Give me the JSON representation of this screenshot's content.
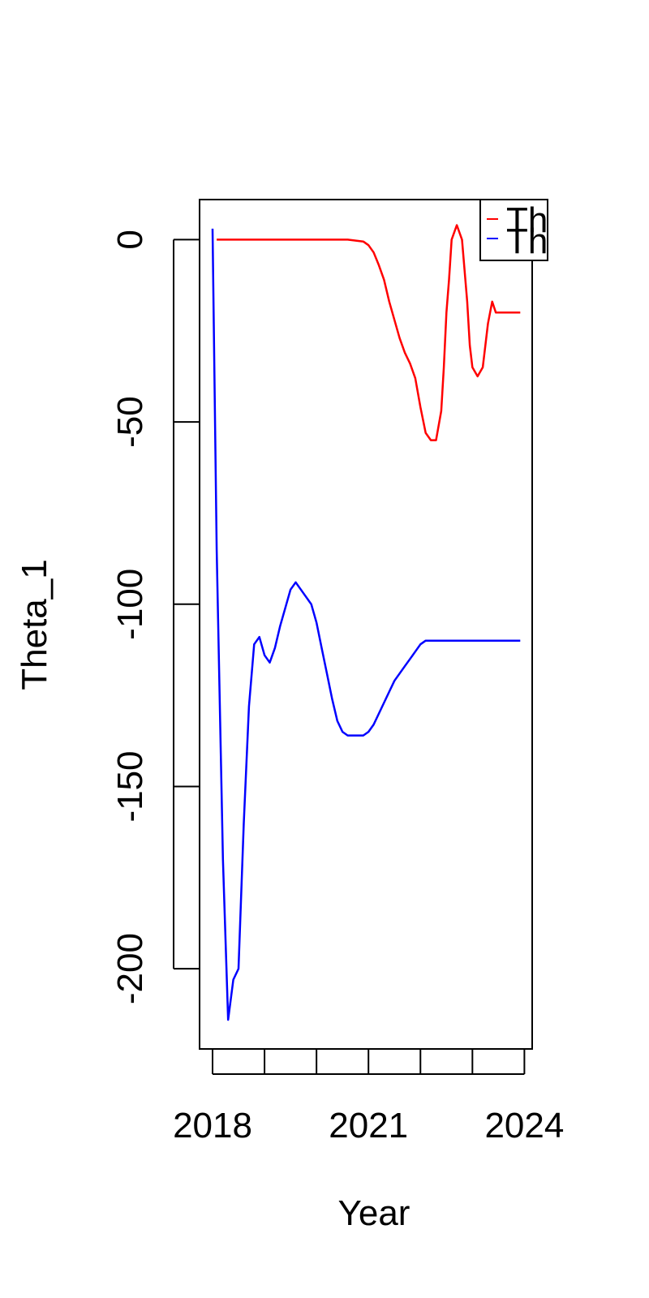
{
  "chart_data": {
    "type": "line",
    "title": "",
    "xlabel": "Year",
    "ylabel": "Theta_1",
    "xlim": [
      2017.75,
      2024.15
    ],
    "ylim": [
      -222,
      11
    ],
    "x_ticks": [
      2018,
      2019,
      2020,
      2021,
      2022,
      2023,
      2024
    ],
    "x_tick_labels": [
      "2018",
      "",
      "",
      "2021",
      "",
      "",
      "2024"
    ],
    "y_ticks": [
      0,
      -50,
      -100,
      -150,
      -200
    ],
    "y_tick_labels": [
      "0",
      "-50",
      "-100",
      "-150",
      "-200"
    ],
    "grid": false,
    "legend_position": "top-right",
    "legend_entries": [
      "Th",
      "Th"
    ],
    "series": [
      {
        "color": "#ff0000",
        "x": [
          2018.08,
          2018.5,
          2019,
          2019.5,
          2020,
          2020.3,
          2020.6,
          2020.9,
          2021.0,
          2021.1,
          2021.2,
          2021.3,
          2021.4,
          2021.5,
          2021.6,
          2021.7,
          2021.8,
          2021.9,
          2022.0,
          2022.1,
          2022.2,
          2022.3,
          2022.4,
          2022.45,
          2022.5,
          2022.55,
          2022.6,
          2022.7,
          2022.8,
          2022.9,
          2022.95,
          2023.0,
          2023.1,
          2023.2,
          2023.3,
          2023.38,
          2023.45,
          2023.55,
          2023.6,
          2023.7,
          2023.8,
          2023.87,
          2023.92
        ],
        "y": [
          0,
          0,
          0,
          0,
          0,
          0,
          0,
          -0.5,
          -1.5,
          -3.5,
          -7,
          -11,
          -17,
          -22,
          -27,
          -31,
          -34,
          -38,
          -46,
          -53,
          -55,
          -55,
          -47,
          -35,
          -20,
          -11,
          0,
          4,
          0,
          -17,
          -29,
          -35,
          -37.5,
          -35,
          -23,
          -17,
          -20,
          -20,
          -20,
          -20,
          -20,
          -20,
          -20
        ]
      },
      {
        "color": "#0000ff",
        "x": [
          2018.0,
          2018.08,
          2018.2,
          2018.3,
          2018.4,
          2018.5,
          2018.6,
          2018.7,
          2018.8,
          2018.9,
          2019.0,
          2019.1,
          2019.2,
          2019.3,
          2019.4,
          2019.5,
          2019.6,
          2019.7,
          2019.8,
          2019.9,
          2020.0,
          2020.1,
          2020.2,
          2020.3,
          2020.4,
          2020.5,
          2020.6,
          2020.7,
          2020.8,
          2020.9,
          2021.0,
          2021.1,
          2021.2,
          2021.3,
          2021.4,
          2021.5,
          2021.6,
          2021.7,
          2021.8,
          2021.9,
          2022.0,
          2022.1,
          2022.2,
          2022.3,
          2022.4,
          2022.5,
          2022.6,
          2022.7,
          2022.8,
          2022.9,
          2023.0,
          2023.1,
          2023.2,
          2023.3,
          2023.4,
          2023.5,
          2023.6,
          2023.7,
          2023.8,
          2023.92
        ],
        "y": [
          3,
          -85,
          -170,
          -214,
          -203,
          -200,
          -160,
          -128,
          -111,
          -109,
          -114,
          -116,
          -112,
          -106,
          -101,
          -96,
          -94,
          -96,
          -98,
          -100,
          -105,
          -112,
          -119,
          -126,
          -132,
          -135,
          -136,
          -136,
          -136,
          -136,
          -135,
          -133,
          -130,
          -127,
          -124,
          -121,
          -119,
          -117,
          -115,
          -113,
          -111,
          -110,
          -110,
          -110,
          -110,
          -110,
          -110,
          -110,
          -110,
          -110,
          -110,
          -110,
          -110,
          -110,
          -110,
          -110,
          -110,
          -110,
          -110,
          -110
        ]
      }
    ]
  }
}
